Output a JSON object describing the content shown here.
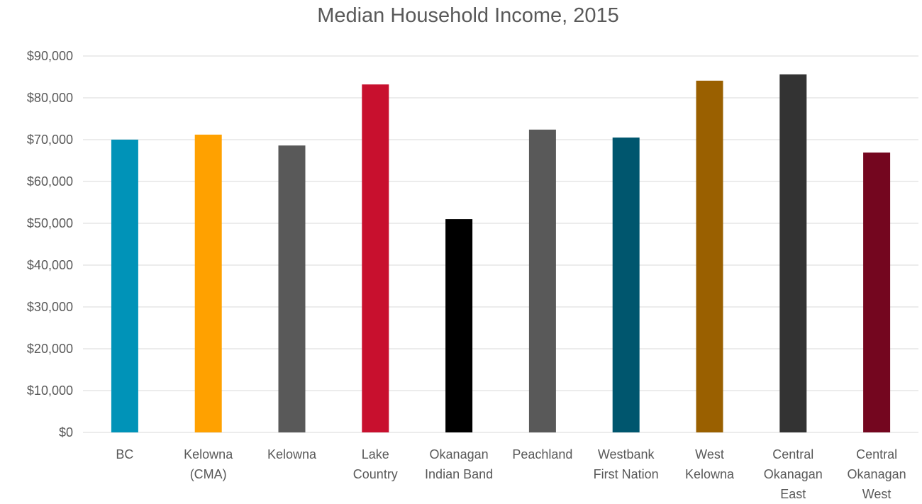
{
  "chart_data": {
    "type": "bar",
    "title": "Median Household Income, 2015",
    "categories": [
      "BC",
      "Kelowna (CMA)",
      "Kelowna",
      "Lake Country",
      "Okanagan Indian Band",
      "Peachland",
      "Westbank First Nation",
      "West Kelowna",
      "Central Okanagan East",
      "Central Okanagan West"
    ],
    "values": [
      70000,
      71200,
      68600,
      83200,
      51000,
      72400,
      70500,
      84100,
      85600,
      66900
    ],
    "colors": [
      "#0093b8",
      "#ffa100",
      "#595959",
      "#c8102e",
      "#000000",
      "#595959",
      "#00566e",
      "#9a6000",
      "#333333",
      "#74061f"
    ],
    "ylim": [
      0,
      90000
    ],
    "yticks": [
      {
        "value": 0,
        "label": "$0"
      },
      {
        "value": 10000,
        "label": "$10,000"
      },
      {
        "value": 20000,
        "label": "$20,000"
      },
      {
        "value": 30000,
        "label": "$30,000"
      },
      {
        "value": 40000,
        "label": "$40,000"
      },
      {
        "value": 50000,
        "label": "$50,000"
      },
      {
        "value": 60000,
        "label": "$60,000"
      },
      {
        "value": 70000,
        "label": "$70,000"
      },
      {
        "value": 80000,
        "label": "$80,000"
      },
      {
        "value": 90000,
        "label": "$90,000"
      }
    ],
    "grid": true
  }
}
